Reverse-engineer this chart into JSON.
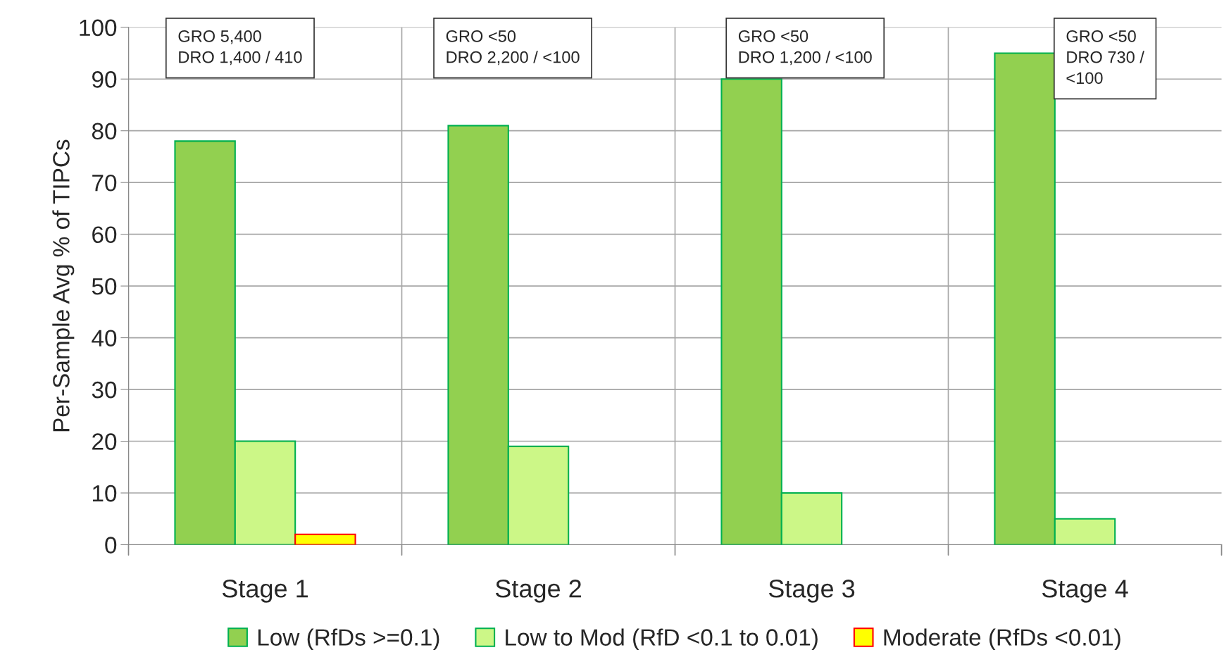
{
  "chart_data": {
    "type": "bar",
    "ylabel": "Per-Sample Avg % of TIPCs",
    "categories": [
      "Stage 1",
      "Stage 2",
      "Stage 3",
      "Stage 4"
    ],
    "series": [
      {
        "name": "Low (RfDs >=0.1)",
        "color": "#92d050",
        "values": [
          78,
          81,
          90,
          95
        ]
      },
      {
        "name": "Low to Mod (RfD <0.1 to 0.01)",
        "color": "#ccf787",
        "values": [
          20,
          19,
          10,
          5
        ]
      },
      {
        "name": "Moderate (RfDs <0.01)",
        "color": "#ffff00",
        "values": [
          2,
          null,
          null,
          null
        ]
      }
    ],
    "ylim": [
      0,
      100
    ],
    "yticks": [
      0,
      10,
      20,
      30,
      40,
      50,
      60,
      70,
      80,
      90,
      100
    ],
    "grid": true,
    "legend": "bottom",
    "annotations": [
      "GRO 5,400\nDRO 1,400 / 410",
      "GRO <50\nDRO 2,200 / <100",
      "GRO <50\nDRO 1,200 / <100",
      "GRO <50\nDRO 730 /\n<100"
    ]
  }
}
